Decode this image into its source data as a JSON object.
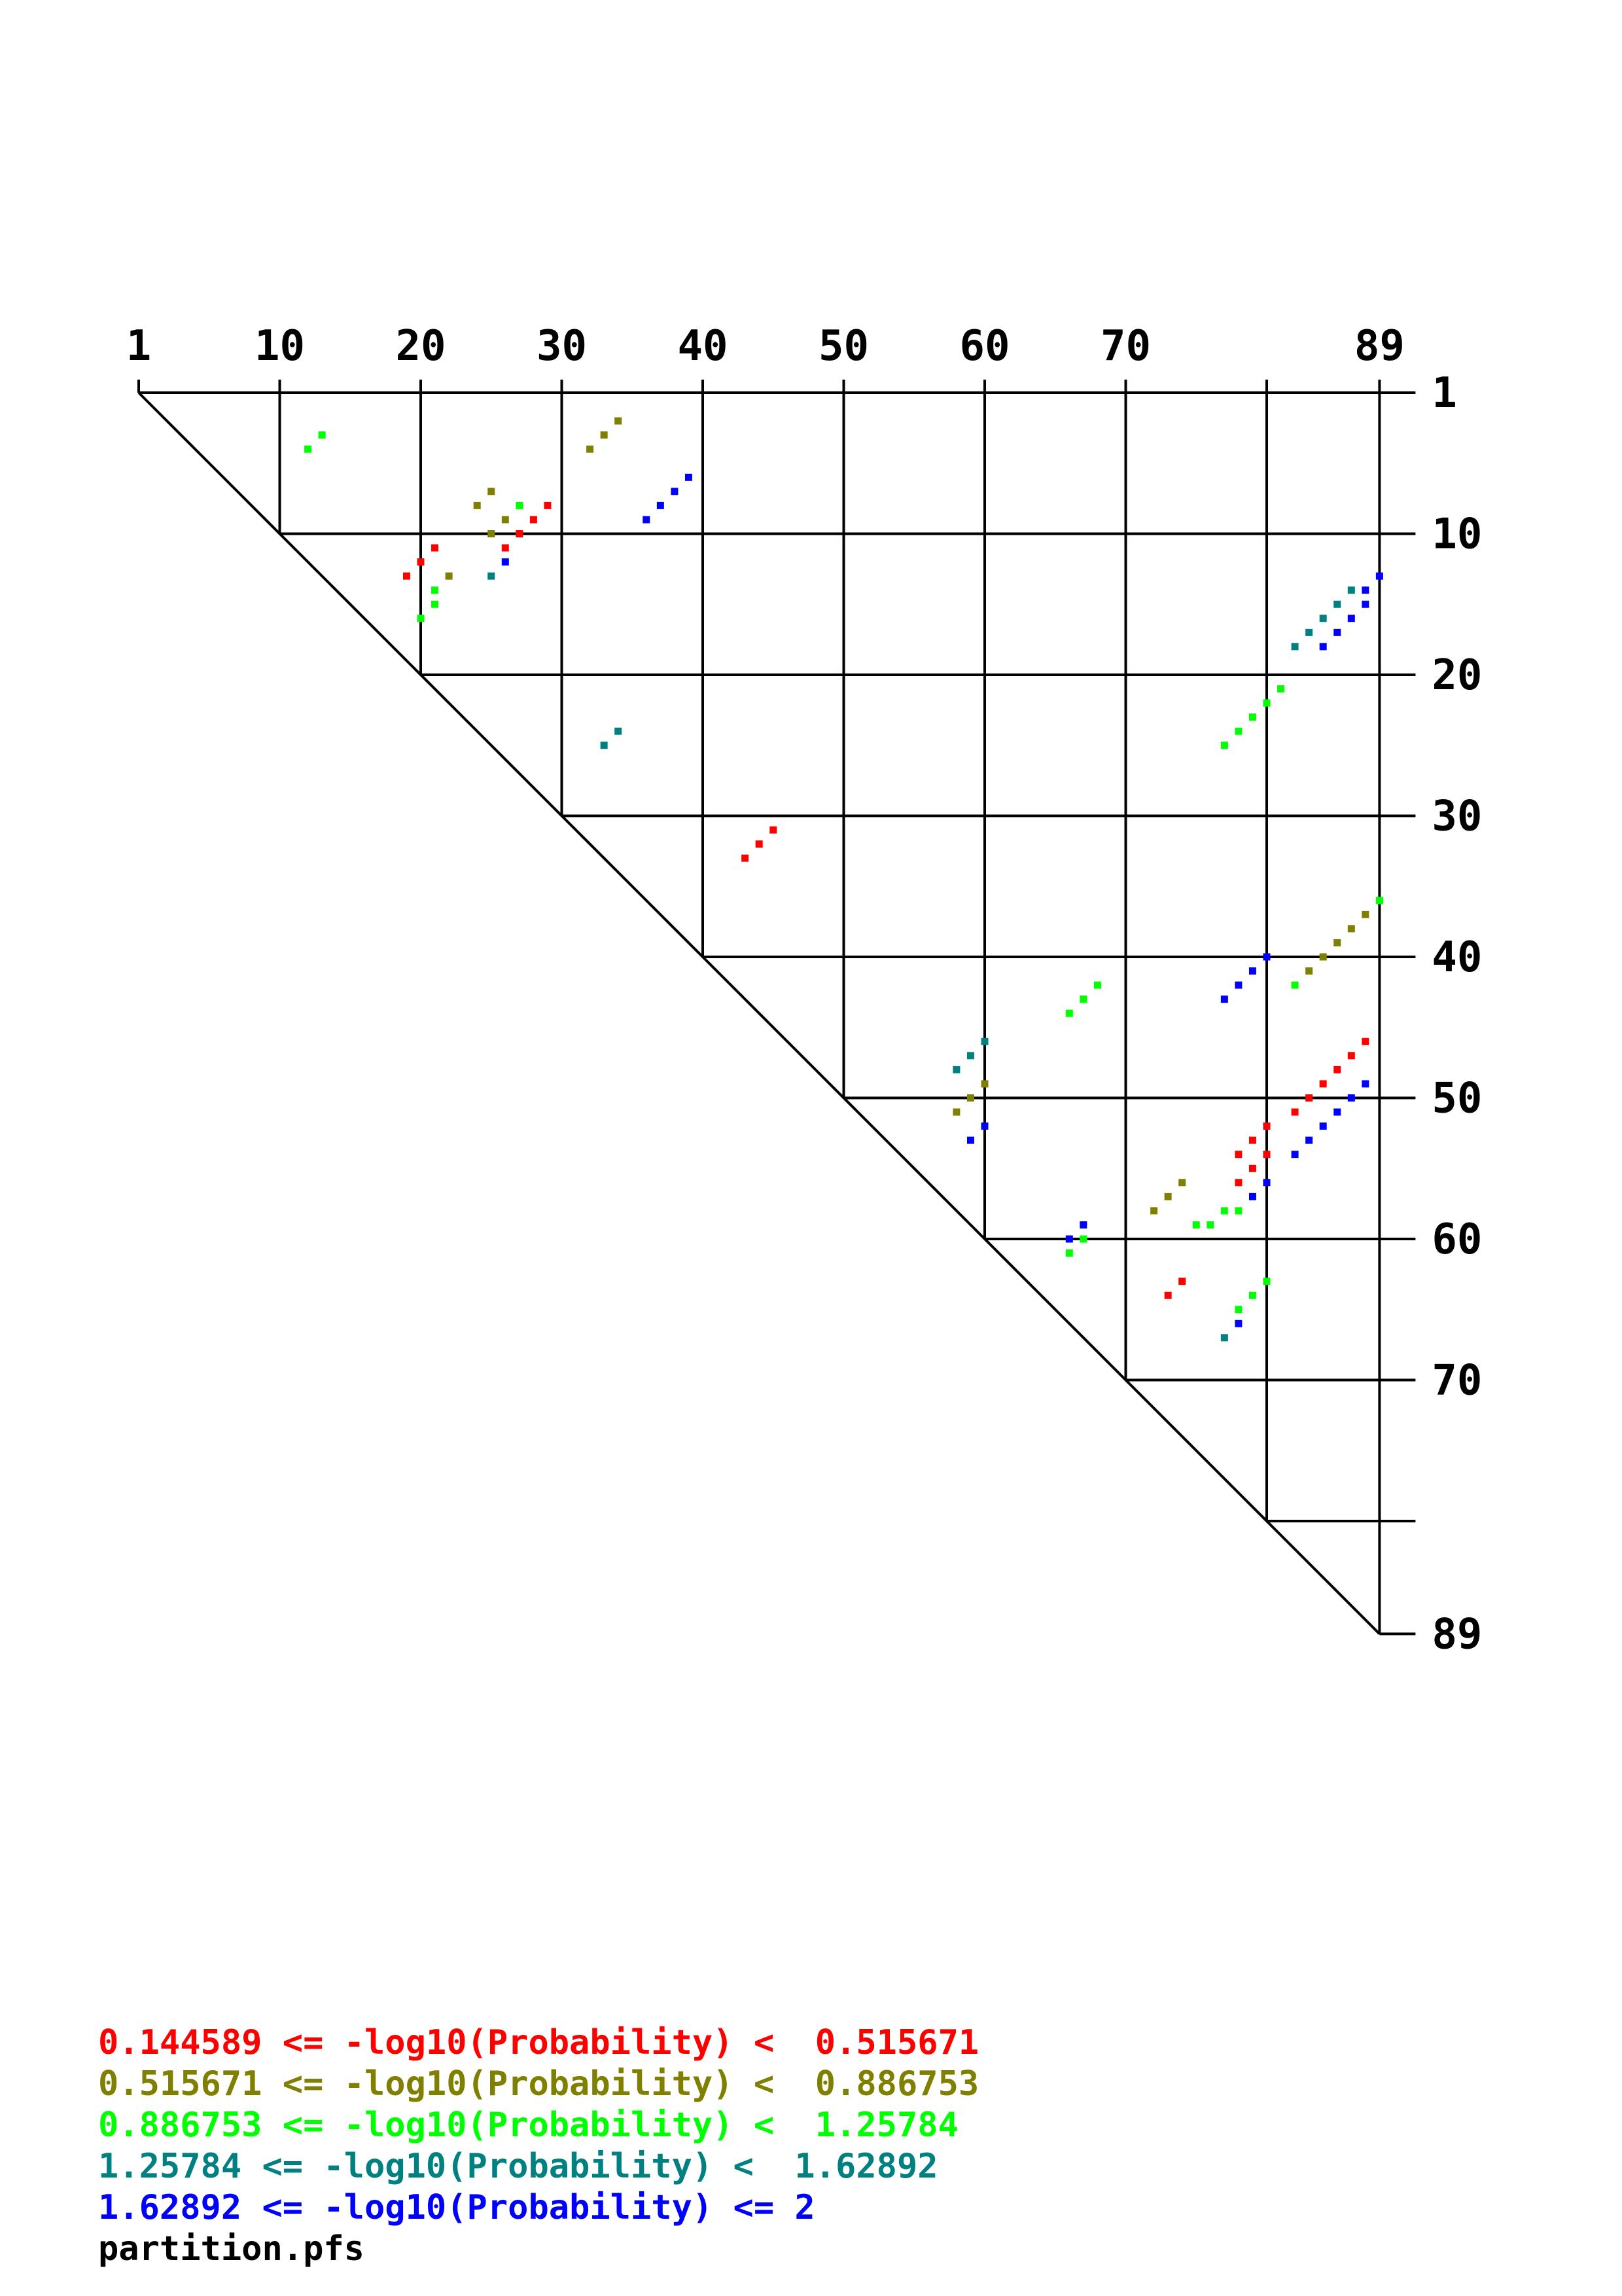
{
  "chart_data": {
    "type": "heatmap",
    "n": 89,
    "title": "",
    "top_tick_labels": [
      "1",
      "10",
      "20",
      "30",
      "40",
      "50",
      "60",
      "70",
      "89"
    ],
    "right_tick_labels": [
      "1",
      "10",
      "20",
      "30",
      "40",
      "50",
      "60",
      "70",
      "89"
    ],
    "grid_lines": [
      10,
      20,
      30,
      40,
      50,
      60,
      70,
      80
    ],
    "legend": [
      {
        "text": "0.144589 <= -log10(Probability) <  0.515671",
        "color": "#ff0000"
      },
      {
        "text": "0.515671 <= -log10(Probability) <  0.886753",
        "color": "#808000"
      },
      {
        "text": "0.886753 <= -log10(Probability) <  1.25784",
        "color": "#00ff00"
      },
      {
        "text": "1.25784 <= -log10(Probability) <  1.62892",
        "color": "#008080"
      },
      {
        "text": "1.62892 <= -log10(Probability) <= 2",
        "color": "#0000ff"
      }
    ],
    "filename": "partition.pfs",
    "points": [
      {
        "i": 14,
        "j": 4,
        "c": 2
      },
      {
        "i": 13,
        "j": 5,
        "c": 2
      },
      {
        "i": 35,
        "j": 3,
        "c": 1
      },
      {
        "i": 34,
        "j": 4,
        "c": 1
      },
      {
        "i": 33,
        "j": 5,
        "c": 1
      },
      {
        "i": 40,
        "j": 7,
        "c": 4
      },
      {
        "i": 39,
        "j": 8,
        "c": 4
      },
      {
        "i": 38,
        "j": 9,
        "c": 4
      },
      {
        "i": 37,
        "j": 10,
        "c": 4
      },
      {
        "i": 26,
        "j": 8,
        "c": 1
      },
      {
        "i": 25,
        "j": 9,
        "c": 1
      },
      {
        "i": 27,
        "j": 10,
        "c": 1
      },
      {
        "i": 26,
        "j": 11,
        "c": 1
      },
      {
        "i": 28,
        "j": 9,
        "c": 2
      },
      {
        "i": 30,
        "j": 9,
        "c": 0
      },
      {
        "i": 29,
        "j": 10,
        "c": 0
      },
      {
        "i": 28,
        "j": 11,
        "c": 0
      },
      {
        "i": 27,
        "j": 12,
        "c": 0
      },
      {
        "i": 27,
        "j": 13,
        "c": 4
      },
      {
        "i": 26,
        "j": 14,
        "c": 3
      },
      {
        "i": 22,
        "j": 12,
        "c": 0
      },
      {
        "i": 21,
        "j": 13,
        "c": 0
      },
      {
        "i": 20,
        "j": 14,
        "c": 0
      },
      {
        "i": 23,
        "j": 14,
        "c": 1
      },
      {
        "i": 22,
        "j": 15,
        "c": 2
      },
      {
        "i": 22,
        "j": 16,
        "c": 2
      },
      {
        "i": 21,
        "j": 17,
        "c": 2
      },
      {
        "i": 89,
        "j": 14,
        "c": 4
      },
      {
        "i": 88,
        "j": 15,
        "c": 4
      },
      {
        "i": 88,
        "j": 16,
        "c": 4
      },
      {
        "i": 87,
        "j": 17,
        "c": 4
      },
      {
        "i": 86,
        "j": 18,
        "c": 4
      },
      {
        "i": 85,
        "j": 19,
        "c": 4
      },
      {
        "i": 87,
        "j": 15,
        "c": 3
      },
      {
        "i": 86,
        "j": 16,
        "c": 3
      },
      {
        "i": 85,
        "j": 17,
        "c": 3
      },
      {
        "i": 84,
        "j": 18,
        "c": 3
      },
      {
        "i": 83,
        "j": 19,
        "c": 3
      },
      {
        "i": 82,
        "j": 22,
        "c": 2
      },
      {
        "i": 81,
        "j": 23,
        "c": 2
      },
      {
        "i": 80,
        "j": 24,
        "c": 2
      },
      {
        "i": 79,
        "j": 25,
        "c": 2
      },
      {
        "i": 78,
        "j": 26,
        "c": 2
      },
      {
        "i": 35,
        "j": 25,
        "c": 3
      },
      {
        "i": 34,
        "j": 26,
        "c": 3
      },
      {
        "i": 46,
        "j": 32,
        "c": 0
      },
      {
        "i": 45,
        "j": 33,
        "c": 0
      },
      {
        "i": 44,
        "j": 34,
        "c": 0
      },
      {
        "i": 89,
        "j": 37,
        "c": 2
      },
      {
        "i": 88,
        "j": 38,
        "c": 1
      },
      {
        "i": 87,
        "j": 39,
        "c": 1
      },
      {
        "i": 86,
        "j": 40,
        "c": 1
      },
      {
        "i": 85,
        "j": 41,
        "c": 1
      },
      {
        "i": 84,
        "j": 42,
        "c": 1
      },
      {
        "i": 83,
        "j": 43,
        "c": 2
      },
      {
        "i": 81,
        "j": 41,
        "c": 4
      },
      {
        "i": 80,
        "j": 42,
        "c": 4
      },
      {
        "i": 79,
        "j": 43,
        "c": 4
      },
      {
        "i": 78,
        "j": 44,
        "c": 4
      },
      {
        "i": 69,
        "j": 43,
        "c": 2
      },
      {
        "i": 68,
        "j": 44,
        "c": 2
      },
      {
        "i": 67,
        "j": 45,
        "c": 2
      },
      {
        "i": 61,
        "j": 47,
        "c": 3
      },
      {
        "i": 60,
        "j": 48,
        "c": 3
      },
      {
        "i": 59,
        "j": 49,
        "c": 3
      },
      {
        "i": 61,
        "j": 50,
        "c": 1
      },
      {
        "i": 60,
        "j": 51,
        "c": 1
      },
      {
        "i": 59,
        "j": 52,
        "c": 1
      },
      {
        "i": 61,
        "j": 53,
        "c": 4
      },
      {
        "i": 60,
        "j": 54,
        "c": 4
      },
      {
        "i": 88,
        "j": 47,
        "c": 0
      },
      {
        "i": 87,
        "j": 48,
        "c": 0
      },
      {
        "i": 86,
        "j": 49,
        "c": 0
      },
      {
        "i": 85,
        "j": 50,
        "c": 0
      },
      {
        "i": 84,
        "j": 51,
        "c": 0
      },
      {
        "i": 83,
        "j": 52,
        "c": 0
      },
      {
        "i": 81,
        "j": 53,
        "c": 0
      },
      {
        "i": 80,
        "j": 54,
        "c": 0
      },
      {
        "i": 79,
        "j": 55,
        "c": 0
      },
      {
        "i": 81,
        "j": 55,
        "c": 0
      },
      {
        "i": 80,
        "j": 56,
        "c": 0
      },
      {
        "i": 79,
        "j": 57,
        "c": 0
      },
      {
        "i": 88,
        "j": 50,
        "c": 4
      },
      {
        "i": 87,
        "j": 51,
        "c": 4
      },
      {
        "i": 86,
        "j": 52,
        "c": 4
      },
      {
        "i": 85,
        "j": 53,
        "c": 4
      },
      {
        "i": 84,
        "j": 54,
        "c": 4
      },
      {
        "i": 83,
        "j": 55,
        "c": 4
      },
      {
        "i": 81,
        "j": 57,
        "c": 4
      },
      {
        "i": 80,
        "j": 58,
        "c": 4
      },
      {
        "i": 75,
        "j": 57,
        "c": 1
      },
      {
        "i": 74,
        "j": 58,
        "c": 1
      },
      {
        "i": 73,
        "j": 59,
        "c": 1
      },
      {
        "i": 79,
        "j": 59,
        "c": 2
      },
      {
        "i": 78,
        "j": 59,
        "c": 2
      },
      {
        "i": 77,
        "j": 60,
        "c": 2
      },
      {
        "i": 76,
        "j": 60,
        "c": 2
      },
      {
        "i": 68,
        "j": 60,
        "c": 4
      },
      {
        "i": 67,
        "j": 61,
        "c": 4
      },
      {
        "i": 68,
        "j": 61,
        "c": 2
      },
      {
        "i": 67,
        "j": 62,
        "c": 2
      },
      {
        "i": 75,
        "j": 64,
        "c": 0
      },
      {
        "i": 74,
        "j": 65,
        "c": 0
      },
      {
        "i": 81,
        "j": 64,
        "c": 2
      },
      {
        "i": 80,
        "j": 65,
        "c": 2
      },
      {
        "i": 79,
        "j": 66,
        "c": 2
      },
      {
        "i": 79,
        "j": 67,
        "c": 4
      },
      {
        "i": 78,
        "j": 68,
        "c": 3
      }
    ]
  }
}
